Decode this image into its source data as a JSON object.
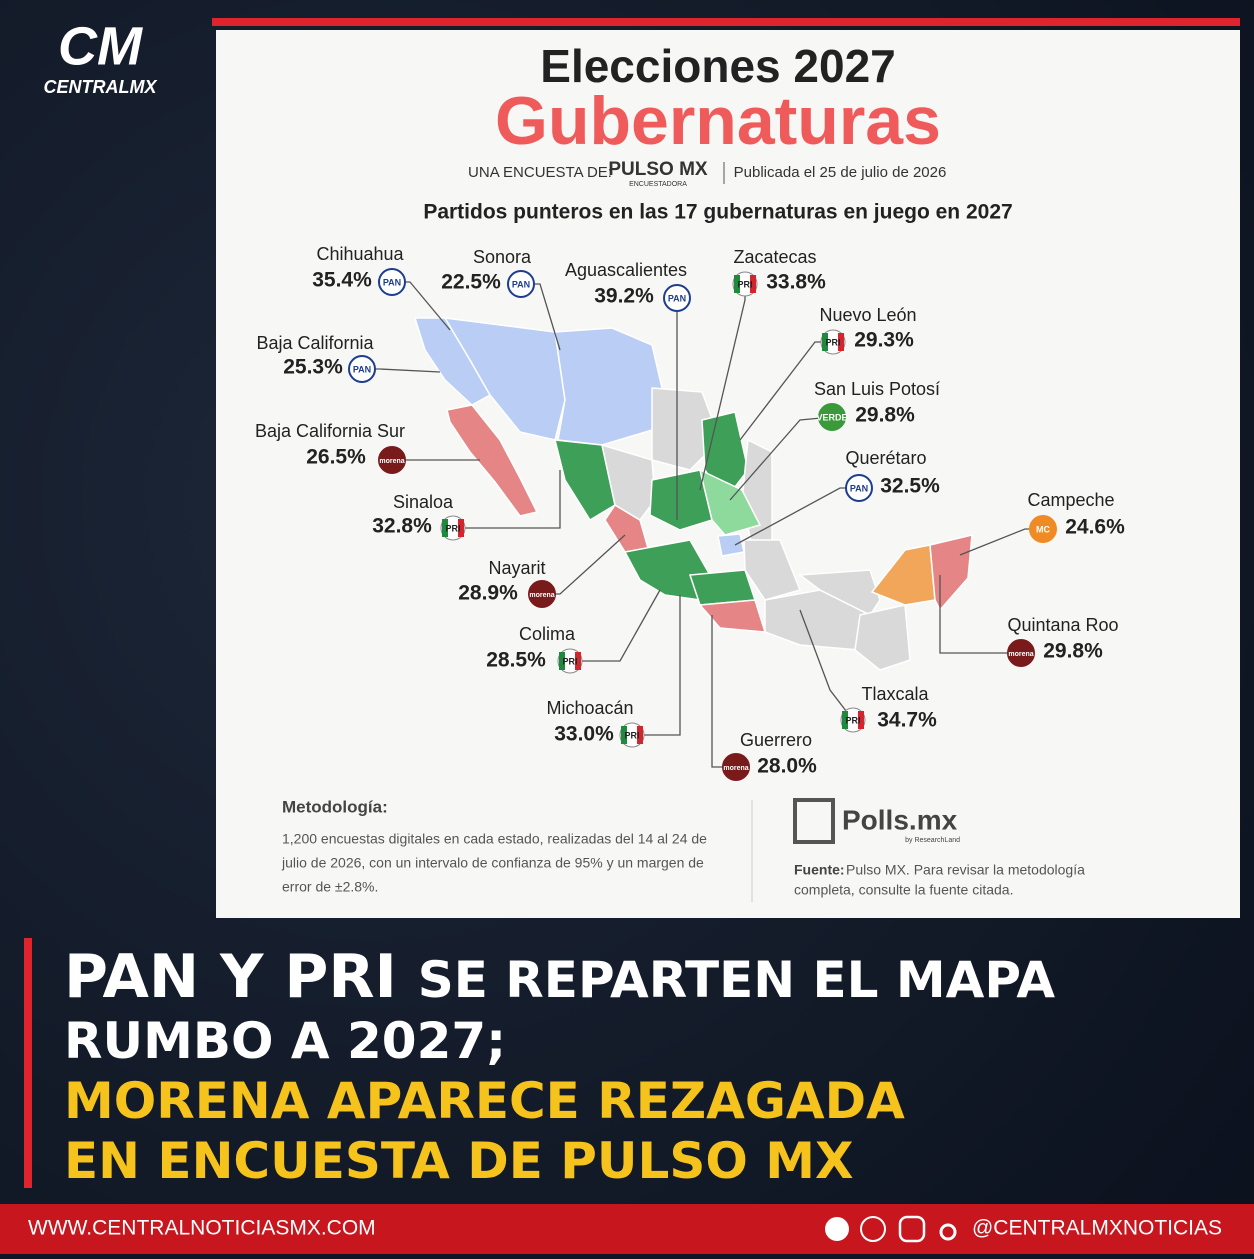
{
  "brand": {
    "logo": "CM",
    "name": "CENTRALMX"
  },
  "infographic": {
    "title": "Elecciones 2027",
    "subtitle": "Gubernaturas",
    "survey_by": "UNA ENCUESTA DE:",
    "pollster": "PULSO MX",
    "pollster_tag": "ENCUESTADORA",
    "published": "Publicada el 25 de julio de 2026",
    "heading": "Partidos punteros en las 17 gubernaturas en juego en 2027",
    "states": [
      {
        "name": "Chihuahua",
        "value": "35.4%",
        "party": "PAN"
      },
      {
        "name": "Sonora",
        "value": "22.5%",
        "party": "PAN"
      },
      {
        "name": "Aguascalientes",
        "value": "39.2%",
        "party": "PAN"
      },
      {
        "name": "Zacatecas",
        "value": "33.8%",
        "party": "PRI"
      },
      {
        "name": "Nuevo León",
        "value": "29.3%",
        "party": "PRI"
      },
      {
        "name": "San Luis Potosí",
        "value": "29.8%",
        "party": "VERDE"
      },
      {
        "name": "Querétaro",
        "value": "32.5%",
        "party": "PAN"
      },
      {
        "name": "Campeche",
        "value": "24.6%",
        "party": "MC"
      },
      {
        "name": "Quintana Roo",
        "value": "29.8%",
        "party": "morena"
      },
      {
        "name": "Tlaxcala",
        "value": "34.7%",
        "party": "PRI"
      },
      {
        "name": "Guerrero",
        "value": "28.0%",
        "party": "morena"
      },
      {
        "name": "Michoacán",
        "value": "33.0%",
        "party": "PRI"
      },
      {
        "name": "Colima",
        "value": "28.5%",
        "party": "PRI"
      },
      {
        "name": "Nayarit",
        "value": "28.9%",
        "party": "morena"
      },
      {
        "name": "Sinaloa",
        "value": "32.8%",
        "party": "PRI"
      },
      {
        "name": "Baja California Sur",
        "value": "26.5%",
        "party": "morena"
      },
      {
        "name": "Baja California",
        "value": "25.3%",
        "party": "PAN"
      }
    ],
    "methodology": {
      "title": "Metodología:",
      "lines": [
        "1,200 encuestas digitales en cada estado, realizadas del 14 al 24 de",
        "julio de 2026, con un intervalo de confianza de 95% y un margen de",
        "error de ±2.8%."
      ]
    },
    "polls_logo": "Polls.mx",
    "polls_tag": "by ResearchLand",
    "source": {
      "label": "Fuente:",
      "lines": [
        "Pulso MX. Para revisar la metodología",
        "completa, consulte la fuente citada."
      ]
    }
  },
  "headline": {
    "white_strong": "PAN Y PRI",
    "white_rest": "SE REPARTEN EL MAPA",
    "line2": "RUMBO A 2027;",
    "yellow1": "MORENA APARECE REZAGADA",
    "yellow2": "EN ENCUESTA DE PULSO MX"
  },
  "footer": {
    "website": "WWW.CENTRALNOTICIASMX.COM",
    "handle": "@CENTRALMXNOTICIAS"
  }
}
